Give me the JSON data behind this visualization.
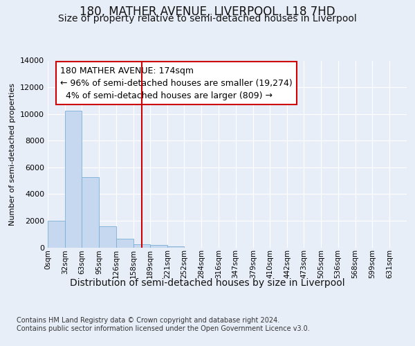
{
  "title": "180, MATHER AVENUE, LIVERPOOL, L18 7HD",
  "subtitle": "Size of property relative to semi-detached houses in Liverpool",
  "xlabel": "Distribution of semi-detached houses by size in Liverpool",
  "ylabel": "Number of semi-detached properties",
  "footer_line1": "Contains HM Land Registry data © Crown copyright and database right 2024.",
  "footer_line2": "Contains public sector information licensed under the Open Government Licence v3.0.",
  "property_size": 174,
  "pct_smaller": 96,
  "n_smaller": 19274,
  "pct_larger": 4,
  "n_larger": 809,
  "bin_labels": [
    "0sqm",
    "32sqm",
    "63sqm",
    "95sqm",
    "126sqm",
    "158sqm",
    "189sqm",
    "221sqm",
    "252sqm",
    "284sqm",
    "316sqm",
    "347sqm",
    "379sqm",
    "410sqm",
    "442sqm",
    "473sqm",
    "505sqm",
    "536sqm",
    "568sqm",
    "599sqm",
    "631sqm"
  ],
  "bin_edges": [
    0,
    32,
    63,
    95,
    126,
    158,
    189,
    221,
    252,
    284,
    316,
    347,
    379,
    410,
    442,
    473,
    505,
    536,
    568,
    599,
    631
  ],
  "bar_values": [
    2000,
    10250,
    5250,
    1600,
    650,
    250,
    200,
    100,
    0,
    0,
    0,
    0,
    0,
    0,
    0,
    0,
    0,
    0,
    0,
    0
  ],
  "bar_color": "#c5d8f0",
  "bar_edge_color": "#7bafd4",
  "vline_color": "#cc0000",
  "vline_x": 174,
  "ylim": [
    0,
    14000
  ],
  "yticks": [
    0,
    2000,
    4000,
    6000,
    8000,
    10000,
    12000,
    14000
  ],
  "bg_color": "#e8eef8",
  "grid_color": "#ffffff",
  "ann_box_facecolor": "#ffffff",
  "ann_box_edgecolor": "#cc0000",
  "title_fontsize": 12,
  "subtitle_fontsize": 10,
  "ylabel_fontsize": 8,
  "xlabel_fontsize": 10,
  "tick_fontsize": 8,
  "ann_fontsize": 9,
  "footer_fontsize": 7
}
